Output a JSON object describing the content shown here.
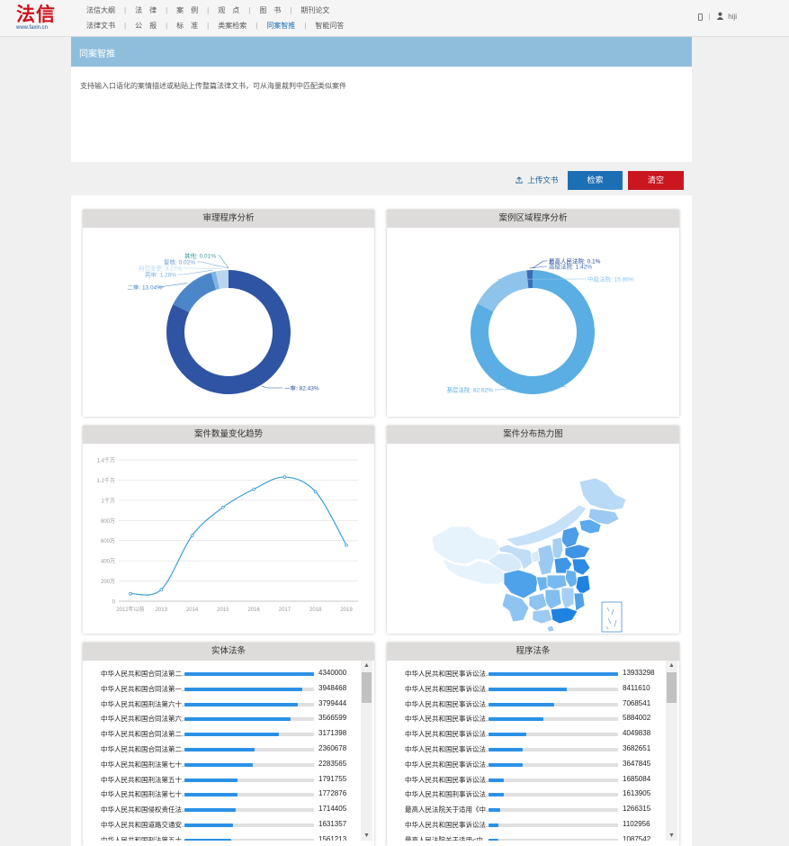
{
  "header": {
    "logo_text": "法信",
    "logo_url": "www.faxin.cn",
    "nav_row1": [
      "法信大纲",
      "法　律",
      "案　例",
      "观　点",
      "图　书",
      "期刊论文"
    ],
    "nav_row2": [
      "法律文书",
      "公　报",
      "标　准",
      "类案检索",
      "同案智推",
      "智能问答"
    ],
    "active_item": "同案智推",
    "user_name": "hiji",
    "phone_icon": "phone-icon",
    "user_icon": "user-icon"
  },
  "panel": {
    "title": "同案智推",
    "placeholder": "支持输入口语化的案情描述或粘贴上传整篇法律文书，可从海量裁判中匹配类似案件"
  },
  "actions": {
    "upload_label": "上传文书",
    "upload_icon": "upload-icon",
    "search_label": "检索",
    "clear_label": "清空"
  },
  "cards": {
    "procedure_title": "审理程序分析",
    "region_title": "案例区域程序分析",
    "trend_title": "案件数量变化趋势",
    "heatmap_title": "案件分布热力图",
    "substantive_title": "实体法条",
    "procedural_title": "程序法条"
  },
  "chart_data": [
    {
      "type": "pie",
      "title": "审理程序分析",
      "labels": [
        "一审",
        "二审",
        "再审",
        "刑罚变更",
        "复核",
        "其他"
      ],
      "values": [
        82.43,
        13.04,
        1.28,
        3.27,
        0.02,
        0.01
      ],
      "display": [
        "一审: 82.43%",
        "二审: 13.04%",
        "再审: 1.28%",
        "刑罚变更: 3.27%",
        "复核: 0.02%",
        "其他: 0.01%"
      ],
      "colors": [
        "#2f54a3",
        "#4a86c8",
        "#7eb3e3",
        "#b9d6f0",
        "#6b9bd1",
        "#3a9ca0"
      ]
    },
    {
      "type": "pie",
      "title": "案例区域程序分析",
      "labels": [
        "基层法院",
        "中级法院",
        "高级法院",
        "最高人民法院"
      ],
      "values": [
        82.62,
        15.86,
        1.42,
        0.1
      ],
      "display": [
        "基层法院: 82.62%",
        "中级法院: 15.86%",
        "高级法院: 1.42%",
        "最高人民法院: 0.1%"
      ],
      "colors": [
        "#5aaee3",
        "#8ec3eb",
        "#3a6db5",
        "#23459a"
      ]
    },
    {
      "type": "line",
      "title": "案件数量变化趋势",
      "x": [
        "2012年以前",
        "2013",
        "2014",
        "2015",
        "2016",
        "2017",
        "2018",
        "2019"
      ],
      "y_ticks": [
        "0",
        "200万",
        "400万",
        "600万",
        "800万",
        "1千万",
        "1.2千万",
        "1.4千万"
      ],
      "ylim": [
        0,
        1400
      ],
      "values": [
        75,
        115,
        650,
        930,
        1110,
        1230,
        1085,
        555
      ],
      "color": "#3ba0d6"
    }
  ],
  "substantive_list": [
    {
      "name": "中华人民共和国合同法第二...",
      "value": "4340000",
      "ratio": 1.0
    },
    {
      "name": "中华人民共和国合同法第一...",
      "value": "3948468",
      "ratio": 0.91
    },
    {
      "name": "中华人民共和国刑法第六十...",
      "value": "3799444",
      "ratio": 0.875
    },
    {
      "name": "中华人民共和国合同法第六...",
      "value": "3566599",
      "ratio": 0.82
    },
    {
      "name": "中华人民共和国合同法第二...",
      "value": "3171398",
      "ratio": 0.73
    },
    {
      "name": "中华人民共和国合同法第二...",
      "value": "2360678",
      "ratio": 0.545
    },
    {
      "name": "中华人民共和国刑法第七十...",
      "value": "2283565",
      "ratio": 0.525
    },
    {
      "name": "中华人民共和国刑法第五十...",
      "value": "1791755",
      "ratio": 0.41
    },
    {
      "name": "中华人民共和国刑法第七十...",
      "value": "1772876",
      "ratio": 0.41
    },
    {
      "name": "中华人民共和国侵权责任法...",
      "value": "1714405",
      "ratio": 0.395
    },
    {
      "name": "中华人民共和国道路交通安...",
      "value": "1631357",
      "ratio": 0.375
    },
    {
      "name": "中华人民共和国刑法第五十...",
      "value": "1561213",
      "ratio": 0.36
    }
  ],
  "procedural_list": [
    {
      "name": "中华人民共和国民事诉讼法...",
      "value": "13933298",
      "ratio": 1.0
    },
    {
      "name": "中华人民共和国民事诉讼法...",
      "value": "8411610",
      "ratio": 0.604
    },
    {
      "name": "中华人民共和国民事诉讼法...",
      "value": "7068541",
      "ratio": 0.507
    },
    {
      "name": "中华人民共和国民事诉讼法...",
      "value": "5884002",
      "ratio": 0.422
    },
    {
      "name": "中华人民共和国民事诉讼法...",
      "value": "4049838",
      "ratio": 0.29
    },
    {
      "name": "中华人民共和国民事诉讼法...",
      "value": "3682651",
      "ratio": 0.264
    },
    {
      "name": "中华人民共和国民事诉讼法...",
      "value": "3647845",
      "ratio": 0.262
    },
    {
      "name": "中华人民共和国民事诉讼法...",
      "value": "1685084",
      "ratio": 0.121
    },
    {
      "name": "中华人民共和国刑事诉讼法...",
      "value": "1613905",
      "ratio": 0.116
    },
    {
      "name": "最高人民法院关于适用《中...",
      "value": "1266315",
      "ratio": 0.091
    },
    {
      "name": "中华人民共和国民事诉讼法...",
      "value": "1102956",
      "ratio": 0.079
    },
    {
      "name": "最高人民法院关于适用<中...",
      "value": "1087542",
      "ratio": 0.078
    }
  ]
}
